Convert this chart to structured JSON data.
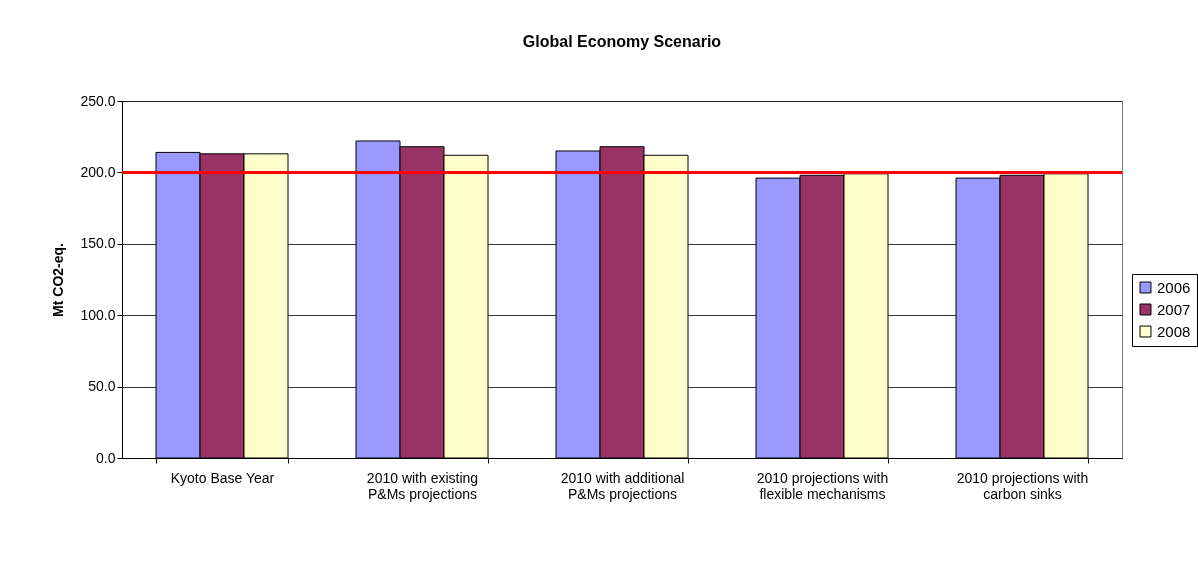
{
  "chart_data": {
    "type": "bar",
    "title": "Global Economy Scenario",
    "ylabel": "Mt CO2-eq.",
    "categories": [
      "Kyoto Base Year",
      "2010 with existing P&Ms projections",
      "2010 with additional P&Ms projections",
      "2010 projections with flexible mechanisms",
      "2010 projections with carbon sinks"
    ],
    "series": [
      {
        "name": "2006",
        "color": "#9999ff",
        "values": [
          214,
          222,
          215,
          196,
          196
        ]
      },
      {
        "name": "2007",
        "color": "#993366",
        "values": [
          213,
          218,
          218,
          198,
          198
        ]
      },
      {
        "name": "2008",
        "color": "#ffffcc",
        "values": [
          213,
          212,
          212,
          199,
          199
        ]
      }
    ],
    "ylim": [
      0,
      250
    ],
    "yticks": [
      {
        "value": 0,
        "label": "0.0"
      },
      {
        "value": 50,
        "label": "50.0"
      },
      {
        "value": 100,
        "label": "100.0"
      },
      {
        "value": 150,
        "label": "150.0"
      },
      {
        "value": 200,
        "label": "200.0"
      },
      {
        "value": 250,
        "label": "250.0"
      }
    ],
    "ref_lines": [
      {
        "axis": "y",
        "value": 200,
        "color": "#ff0000"
      }
    ],
    "grid": "y",
    "legend": "right"
  }
}
